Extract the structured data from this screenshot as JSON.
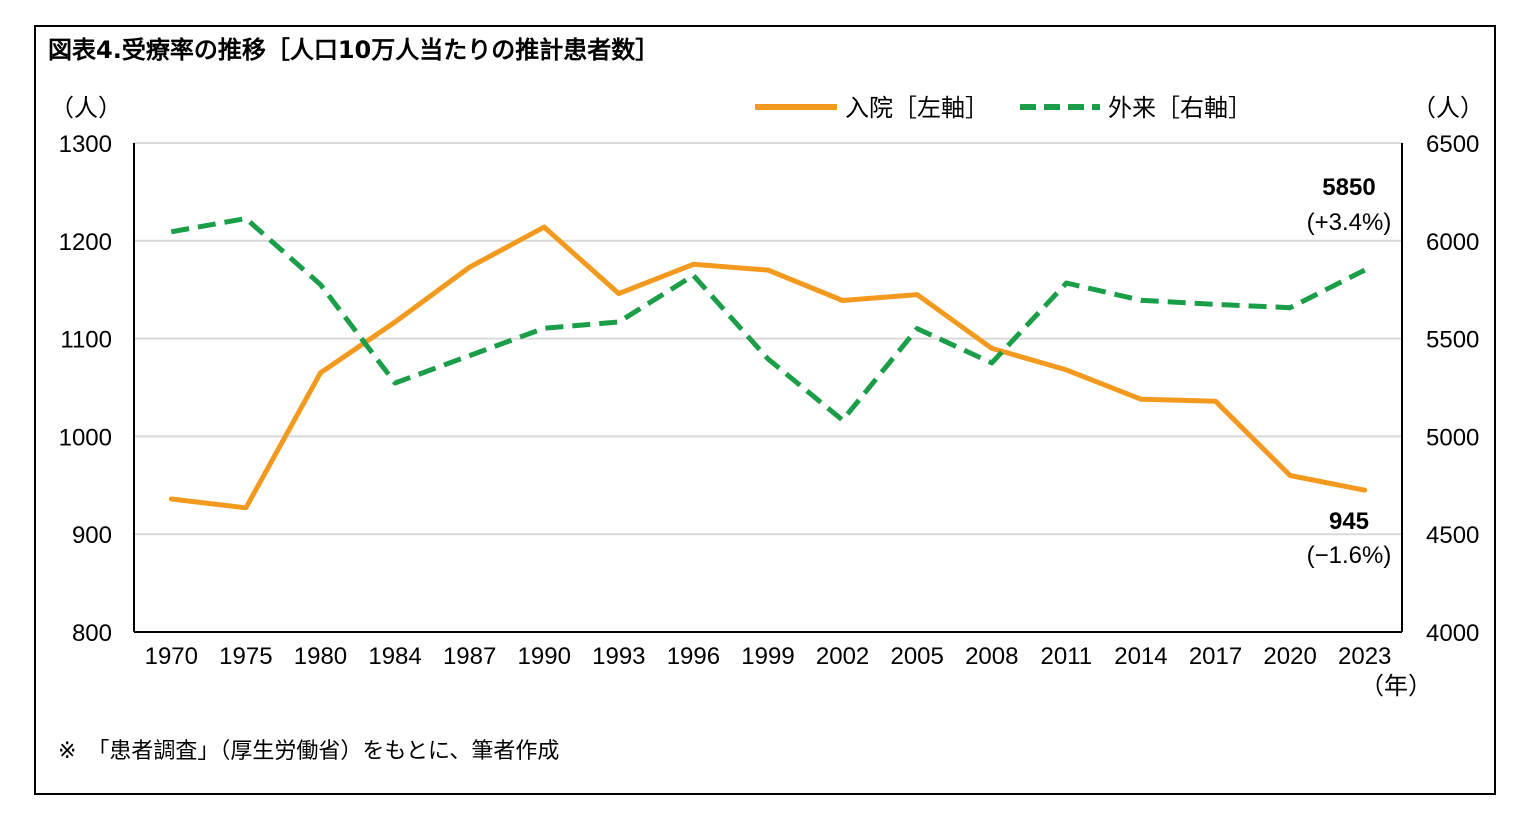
{
  "chart_data": {
    "type": "line",
    "title": "図表4.受療率の推移［人口10万人当たりの推計患者数］",
    "x": [
      "1970",
      "1975",
      "1980",
      "1984",
      "1987",
      "1990",
      "1993",
      "1996",
      "1999",
      "2002",
      "2005",
      "2008",
      "2011",
      "2014",
      "2017",
      "2020",
      "2023"
    ],
    "x_unit": "（年）",
    "y_left": {
      "unit": "（人）",
      "range": [
        800,
        1300
      ],
      "ticks": [
        "800",
        "900",
        "1000",
        "1100",
        "1200",
        "1300"
      ]
    },
    "y_right": {
      "unit": "（人）",
      "range": [
        4000,
        6500
      ],
      "ticks": [
        "4000",
        "4500",
        "5000",
        "5500",
        "6000",
        "6500"
      ]
    },
    "grid": true,
    "legend_position": "top-right",
    "series": [
      {
        "name": "入院［左軸］",
        "axis": "left",
        "style": "solid",
        "color": "#F39A1E",
        "values": [
          936,
          927,
          1065,
          1117,
          1173,
          1214,
          1146,
          1176,
          1170,
          1139,
          1145,
          1090,
          1068,
          1038,
          1036,
          960,
          945
        ]
      },
      {
        "name": "外来［右軸］",
        "axis": "right",
        "style": "dashed",
        "color": "#1A9E48",
        "values": [
          6046,
          6114,
          5776,
          5273,
          5413,
          5553,
          5585,
          5823,
          5396,
          5083,
          5551,
          5376,
          5784,
          5696,
          5675,
          5658,
          5850
        ]
      }
    ],
    "annotations": [
      {
        "series": 1,
        "label": "5850",
        "sublabel": "(+3.4%)"
      },
      {
        "series": 0,
        "label": "945",
        "sublabel": "(−1.6%)"
      }
    ]
  },
  "note": "※　「患者調査」（厚生労働省）をもとに、筆者作成"
}
